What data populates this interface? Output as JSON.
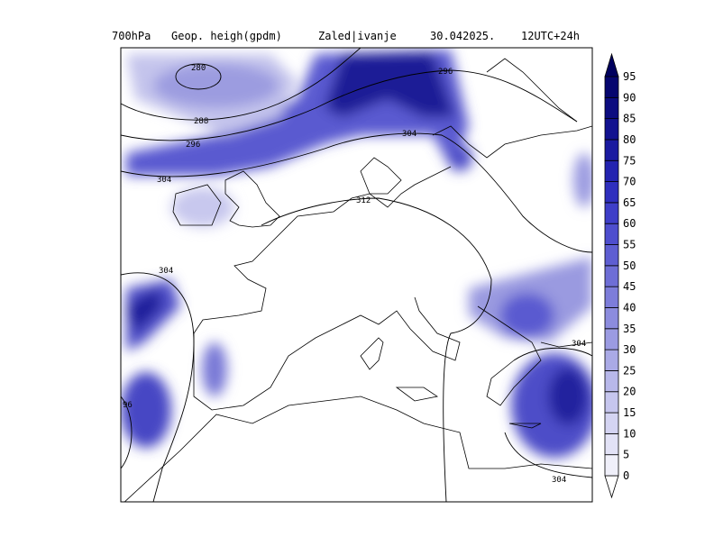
{
  "header": {
    "level": "700hPa",
    "field": "Geop. heigh(gpdm)",
    "product": "Zaled|ivanje",
    "date": "30.042025.",
    "run": "12UTC+24h"
  },
  "colorbar": {
    "levels": [
      0,
      5,
      10,
      15,
      20,
      25,
      30,
      35,
      40,
      45,
      50,
      55,
      60,
      65,
      70,
      75,
      80,
      85,
      90,
      95
    ],
    "colors": [
      "#ffffff",
      "#f0f0fa",
      "#e2e2f6",
      "#d4d4f2",
      "#c6c6ee",
      "#b8b8ea",
      "#aaaae6",
      "#9b9be2",
      "#8c8cde",
      "#7d7dda",
      "#6e6ed6",
      "#5e5ed2",
      "#4e4ece",
      "#3e3ec8",
      "#2f2fbe",
      "#2323b0",
      "#1a1aa0",
      "#121290",
      "#0c0c80",
      "#06066f",
      "#00005e"
    ]
  },
  "contour_labels": [
    "280",
    "288",
    "296",
    "304",
    "312",
    "304",
    "96",
    "304",
    "304",
    "296",
    "304"
  ]
}
